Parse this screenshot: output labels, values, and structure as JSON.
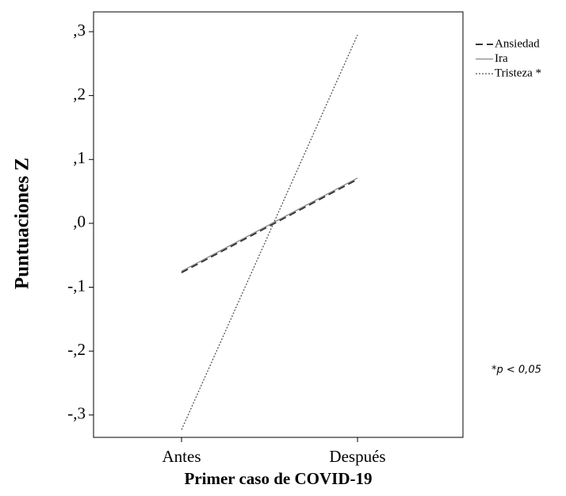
{
  "chart_data": {
    "type": "line",
    "categories": [
      "Antes",
      "Después"
    ],
    "series": [
      {
        "name": "Ansiedad",
        "color": "#333333",
        "dash": "dashed",
        "values": [
          -0.077,
          0.069
        ]
      },
      {
        "name": "Ira",
        "color": "#888888",
        "dash": "solid",
        "values": [
          -0.075,
          0.071
        ]
      },
      {
        "name": "Tristeza *",
        "color": "#555555",
        "dash": "dotted",
        "values": [
          -0.323,
          0.295
        ]
      }
    ],
    "ylim": [
      -0.335,
      0.331
    ],
    "yticks": [
      {
        "value": 0.3,
        "label": ",3"
      },
      {
        "value": 0.2,
        "label": ",2"
      },
      {
        "value": 0.1,
        "label": ",1"
      },
      {
        "value": 0,
        "label": ",0"
      },
      {
        "value": -0.1,
        "label": "-,1"
      },
      {
        "value": -0.2,
        "label": "-,2"
      },
      {
        "value": -0.3,
        "label": "-,3"
      }
    ],
    "y_label": "Puntuaciones Z",
    "x_label": "Primer caso de COVID-19",
    "annotation": "*p < 0,05",
    "legend": "right"
  }
}
